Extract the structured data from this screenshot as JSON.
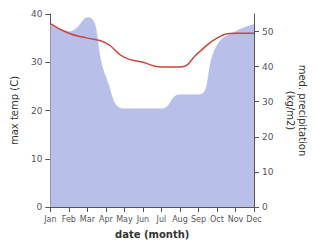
{
  "chart_data": {
    "type": "line",
    "xlabel": "date (month)",
    "ylabel": "max temp (C)",
    "y2label": "med. precipitation\n(kg/m2)",
    "categories": [
      "Jan",
      "Feb",
      "Mar",
      "Apr",
      "May",
      "Jun",
      "Jul",
      "Aug",
      "Sep",
      "Oct",
      "Nov",
      "Dec"
    ],
    "series": [
      {
        "type": "area",
        "axis": "y2",
        "color": "#b8bfe8",
        "values": [
          52,
          50,
          54,
          37,
          28,
          28,
          28,
          32,
          32,
          46,
          50,
          52
        ]
      },
      {
        "type": "line",
        "color": "#c9463d",
        "values": [
          38,
          36,
          35,
          34,
          31,
          30,
          29,
          29,
          32,
          35,
          36,
          36
        ]
      }
    ],
    "ylim": [
      0,
      40
    ],
    "yticks": [
      0,
      10,
      20,
      30,
      40
    ],
    "y2lim": [
      0,
      55
    ],
    "y2ticks": [
      0,
      10,
      20,
      30,
      40,
      50
    ],
    "grid": false
  }
}
